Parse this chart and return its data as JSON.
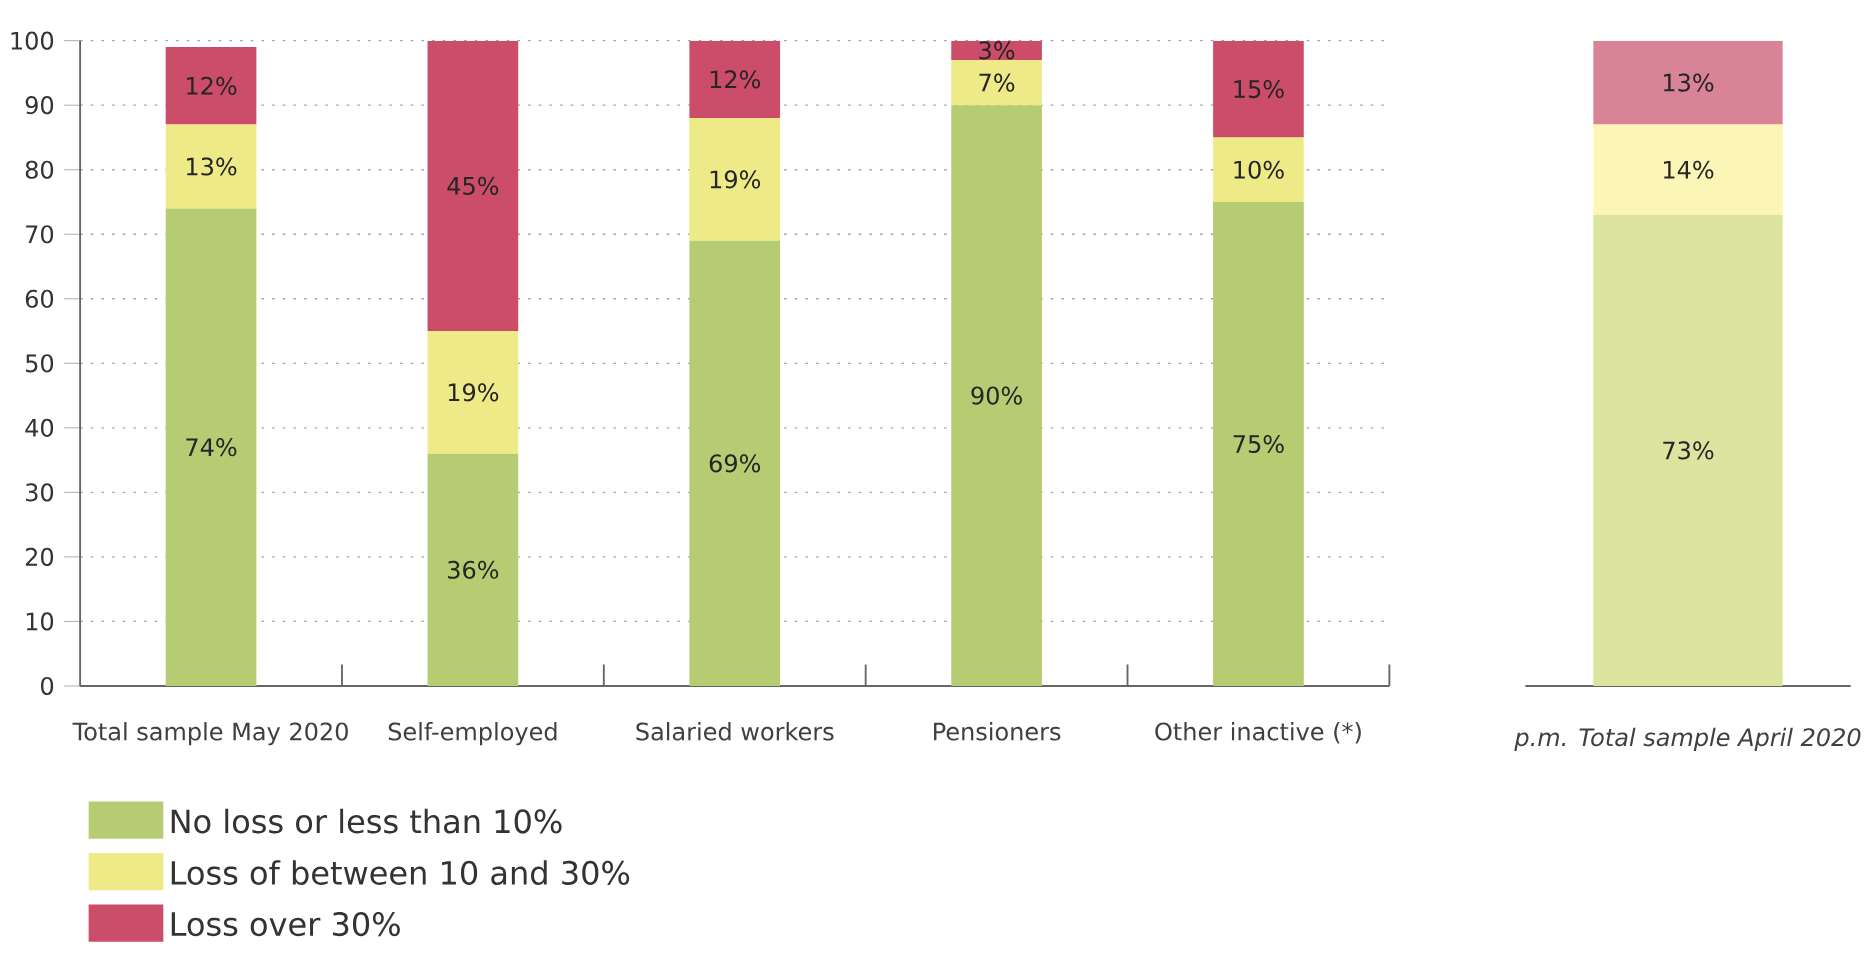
{
  "chart_data": [
    {
      "type": "bar",
      "stacked": true,
      "categories": [
        "Total sample May 2020",
        "Self-employed",
        "Salaried workers",
        "Pensioners",
        "Other inactive (*)"
      ],
      "series": [
        {
          "name": "No loss or less than 10%",
          "color": "#b5cc72",
          "values": [
            74,
            36,
            69,
            90,
            75
          ],
          "value_labels": [
            "74%",
            "36%",
            "69%",
            "90%",
            "75%"
          ]
        },
        {
          "name": "Loss of between 10 and 30%",
          "color": "#eeea88",
          "values": [
            13,
            19,
            19,
            7,
            10
          ],
          "value_labels": [
            "13%",
            "19%",
            "19%",
            "7%",
            "10%"
          ]
        },
        {
          "name": "Loss over 30%",
          "color": "#cc4d69",
          "values": [
            12,
            45,
            12,
            3,
            15
          ],
          "value_labels": [
            "12%",
            "45%",
            "12%",
            "3%",
            "15%"
          ]
        }
      ],
      "ylim": [
        0,
        100
      ],
      "yticks": [
        0,
        10,
        20,
        30,
        40,
        50,
        60,
        70,
        80,
        90,
        100
      ],
      "grid": "y",
      "legend": "bottom"
    },
    {
      "type": "bar",
      "stacked": true,
      "categories": [
        "p.m. Total sample April 2020"
      ],
      "series": [
        {
          "color": "#dce4a0",
          "values": [
            73
          ],
          "value_labels": [
            "73%"
          ]
        },
        {
          "color": "#fcf6b6",
          "values": [
            14
          ],
          "value_labels": [
            "14%"
          ]
        },
        {
          "color": "#d98397",
          "values": [
            13
          ],
          "value_labels": [
            "13%"
          ]
        }
      ],
      "ylim": [
        0,
        100
      ],
      "yticks": [
        0,
        10,
        20,
        30,
        40,
        50,
        60,
        70,
        80,
        90,
        100
      ],
      "grid": "y",
      "tick_labels": "x"
    }
  ]
}
